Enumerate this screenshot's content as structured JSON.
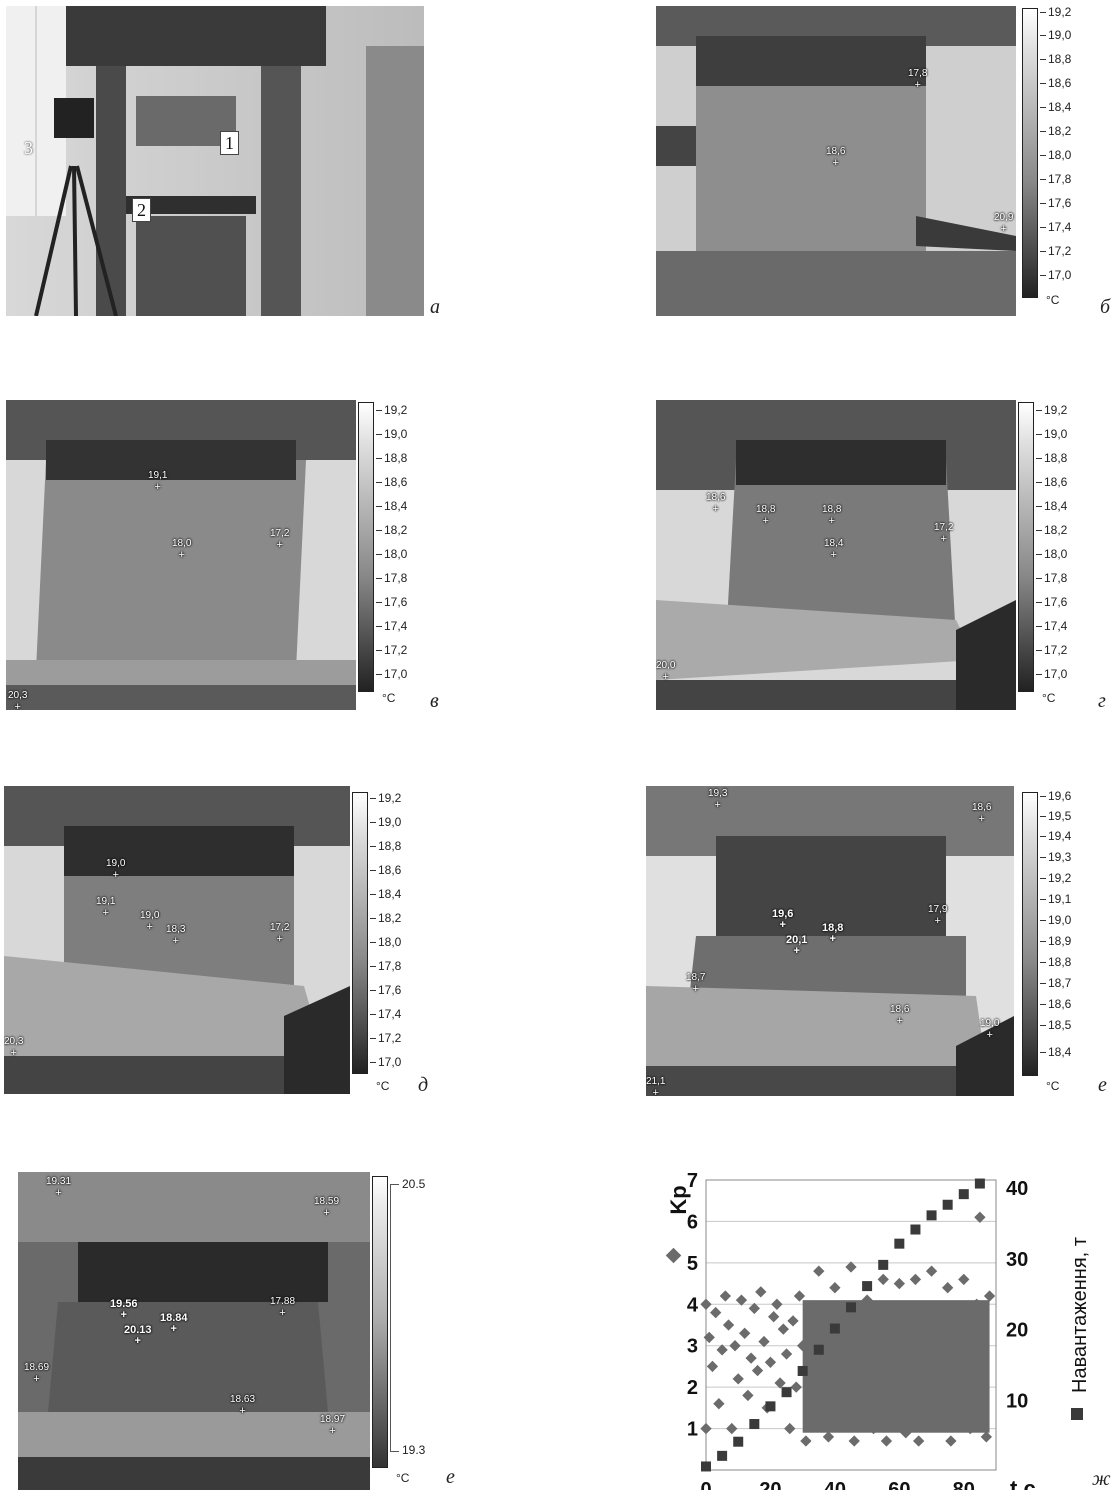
{
  "panels": {
    "a": {
      "letter": "a",
      "labels": [
        "1",
        "2",
        "3"
      ]
    },
    "b": {
      "letter": "б",
      "scale": [
        "19,2",
        "19,0",
        "18,8",
        "18,6",
        "18,4",
        "18,2",
        "18,0",
        "17,8",
        "17,6",
        "17,4",
        "17,2",
        "17,0"
      ],
      "unit": "°C",
      "markers": [
        "17,8",
        "18,6",
        "20,9"
      ]
    },
    "c": {
      "letter": "в",
      "scale": [
        "19,2",
        "19,0",
        "18,8",
        "18,6",
        "18,4",
        "18,2",
        "18,0",
        "17,8",
        "17,6",
        "17,4",
        "17,2",
        "17,0"
      ],
      "unit": "°C",
      "markers": [
        "19,1",
        "18,0",
        "17,2",
        "20,3"
      ]
    },
    "d": {
      "letter": "г",
      "scale": [
        "19,2",
        "19,0",
        "18,8",
        "18,6",
        "18,4",
        "18,2",
        "18,0",
        "17,8",
        "17,6",
        "17,4",
        "17,2",
        "17,0"
      ],
      "unit": "°C",
      "markers": [
        "18,6",
        "18,8",
        "18,8",
        "17,2",
        "18,4",
        "20,0"
      ]
    },
    "e": {
      "letter": "д",
      "scale": [
        "19,2",
        "19,0",
        "18,8",
        "18,6",
        "18,4",
        "18,2",
        "18,0",
        "17,8",
        "17,6",
        "17,4",
        "17,2",
        "17,0"
      ],
      "unit": "°C",
      "markers": [
        "19,0",
        "19,1",
        "19,0",
        "18,3",
        "17,2",
        "20,3"
      ]
    },
    "f": {
      "letter": "е",
      "scale": [
        "19,6",
        "19,5",
        "19,4",
        "19,3",
        "19,2",
        "19,1",
        "19,0",
        "18,9",
        "18,8",
        "18,7",
        "18,6",
        "18,5",
        "18,4"
      ],
      "unit": "°C",
      "markers": [
        "19,3",
        "18,6",
        "19,6",
        "20,1",
        "18,8",
        "17,9",
        "18,7",
        "18,6",
        "19,0",
        "21,1"
      ]
    },
    "g": {
      "letter": "е",
      "scale_top": "20.5",
      "scale_bottom": "19.3",
      "unit": "°C",
      "markers": [
        "19.31",
        "18.59",
        "19.56",
        "20.13",
        "18.84",
        "17.88",
        "18.69",
        "18.63",
        "18.97"
      ]
    },
    "h": {
      "letter": "ж"
    }
  },
  "chart_data": {
    "type": "scatter",
    "ylabel": "Kp",
    "y2label": "Навантаження, т",
    "xlabel": "t,c",
    "xlim": [
      0,
      90
    ],
    "ylim": [
      0,
      7
    ],
    "y2lim": [
      0,
      41
    ],
    "xticks": [
      "0",
      "20",
      "40",
      "60",
      "80"
    ],
    "yticks": [
      "1",
      "2",
      "3",
      "4",
      "5",
      "6",
      "7"
    ],
    "y2ticks": [
      "10",
      "20",
      "30",
      "40"
    ],
    "series": [
      {
        "name": "Kp",
        "marker": "diamond",
        "color": "#6b6b6b",
        "values": [
          [
            0,
            4.0
          ],
          [
            0,
            1.0
          ],
          [
            1,
            3.2
          ],
          [
            2,
            2.5
          ],
          [
            3,
            3.8
          ],
          [
            4,
            1.6
          ],
          [
            5,
            2.9
          ],
          [
            6,
            4.2
          ],
          [
            7,
            3.5
          ],
          [
            8,
            1.0
          ],
          [
            9,
            3.0
          ],
          [
            10,
            2.2
          ],
          [
            11,
            4.1
          ],
          [
            12,
            3.3
          ],
          [
            13,
            1.8
          ],
          [
            14,
            2.7
          ],
          [
            15,
            3.9
          ],
          [
            16,
            2.4
          ],
          [
            17,
            4.3
          ],
          [
            18,
            3.1
          ],
          [
            19,
            1.5
          ],
          [
            20,
            2.6
          ],
          [
            21,
            3.7
          ],
          [
            22,
            4.0
          ],
          [
            23,
            2.1
          ],
          [
            24,
            3.4
          ],
          [
            25,
            2.8
          ],
          [
            26,
            1.0
          ],
          [
            27,
            3.6
          ],
          [
            28,
            2.0
          ],
          [
            29,
            4.2
          ],
          [
            30,
            3.0
          ],
          [
            31,
            0.7
          ],
          [
            32,
            2.5
          ],
          [
            33,
            3.9
          ],
          [
            34,
            1.2
          ],
          [
            35,
            4.8
          ],
          [
            36,
            2.3
          ],
          [
            37,
            3.3
          ],
          [
            38,
            0.8
          ],
          [
            40,
            4.4
          ],
          [
            42,
            1.5
          ],
          [
            44,
            3.7
          ],
          [
            45,
            4.9
          ],
          [
            46,
            0.7
          ],
          [
            48,
            2.6
          ],
          [
            50,
            4.1
          ],
          [
            52,
            1.0
          ],
          [
            54,
            3.5
          ],
          [
            55,
            4.6
          ],
          [
            56,
            0.7
          ],
          [
            58,
            2.9
          ],
          [
            60,
            4.5
          ],
          [
            62,
            0.9
          ],
          [
            64,
            3.8
          ],
          [
            65,
            4.6
          ],
          [
            66,
            0.7
          ],
          [
            68,
            2.2
          ],
          [
            70,
            4.8
          ],
          [
            72,
            1.2
          ],
          [
            74,
            3.6
          ],
          [
            75,
            4.4
          ],
          [
            76,
            0.7
          ],
          [
            78,
            2.8
          ],
          [
            80,
            4.6
          ],
          [
            82,
            1.0
          ],
          [
            84,
            4.0
          ],
          [
            85,
            6.1
          ],
          [
            86,
            3.3
          ],
          [
            87,
            0.8
          ],
          [
            88,
            4.2
          ]
        ]
      },
      {
        "name": "Навантаження, т",
        "marker": "square",
        "color": "#3a3a3a",
        "axis": "y2",
        "values": [
          [
            0,
            0.5
          ],
          [
            5,
            2
          ],
          [
            10,
            4
          ],
          [
            15,
            6.5
          ],
          [
            20,
            9
          ],
          [
            25,
            11
          ],
          [
            30,
            14
          ],
          [
            35,
            17
          ],
          [
            40,
            20
          ],
          [
            45,
            23
          ],
          [
            50,
            26
          ],
          [
            55,
            29
          ],
          [
            60,
            32
          ],
          [
            65,
            34
          ],
          [
            70,
            36
          ],
          [
            75,
            37.5
          ],
          [
            80,
            39
          ],
          [
            85,
            40.5
          ]
        ]
      }
    ],
    "band": {
      "x_from": 30,
      "x_to": 88,
      "y_from": 0.9,
      "y_to": 4.1
    }
  }
}
